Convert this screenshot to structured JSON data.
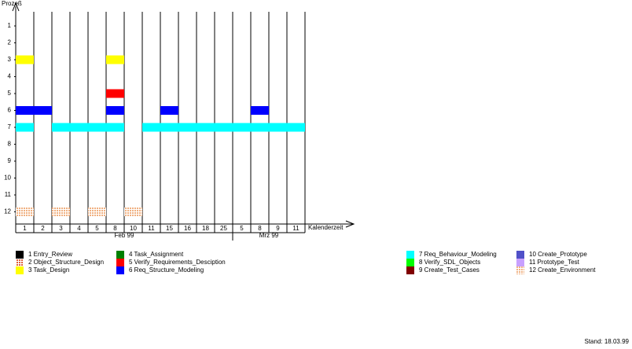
{
  "chart_data": {
    "type": "gantt",
    "y_label": "Prozeß",
    "x_label": "Kalenderzeit",
    "yticks": [
      1,
      2,
      3,
      4,
      5,
      6,
      7,
      8,
      9,
      10,
      11,
      12
    ],
    "categories": [
      "1",
      "2",
      "3",
      "4",
      "5",
      "8",
      "10",
      "11",
      "15",
      "16",
      "18",
      "25",
      "5",
      "8",
      "9",
      "11"
    ],
    "months": [
      {
        "label": "Feb 99",
        "from": 0,
        "to": 11
      },
      {
        "label": "Mrz 99",
        "from": 12,
        "to": 15
      }
    ],
    "series": [
      {
        "name": "1 Entry_Review",
        "color": "#000000",
        "row": 1,
        "spans": []
      },
      {
        "name": "2 Object_Structure_Design",
        "color": "#e0603a",
        "pattern": true,
        "row": 2,
        "spans": []
      },
      {
        "name": "3 Task_Design",
        "color": "#ffff00",
        "row": 3,
        "spans": [
          [
            0,
            0
          ],
          [
            5,
            5
          ]
        ]
      },
      {
        "name": "4 Task_Assignment",
        "color": "#008000",
        "row": 4,
        "spans": []
      },
      {
        "name": "5 Verify_Requirements_Desciption",
        "color": "#ff0000",
        "row": 5,
        "spans": [
          [
            5,
            5
          ]
        ]
      },
      {
        "name": "6 Req_Structure_Modeling",
        "color": "#0000ff",
        "row": 6,
        "spans": [
          [
            0,
            1
          ],
          [
            5,
            5
          ],
          [
            8,
            8
          ],
          [
            13,
            13
          ]
        ]
      },
      {
        "name": "7 Req_Behaviour_Modeling",
        "color": "#00ffff",
        "row": 7,
        "spans": [
          [
            0,
            0
          ],
          [
            2,
            5
          ],
          [
            7,
            15
          ]
        ]
      },
      {
        "name": "8 Verify_SDL_Objects",
        "color": "#00ff00",
        "row": 8,
        "spans": []
      },
      {
        "name": "9 Create_Test_Cases",
        "color": "#800000",
        "row": 9,
        "spans": []
      },
      {
        "name": "10 Create_Prototype",
        "color": "#5050c8",
        "row": 10,
        "spans": []
      },
      {
        "name": "11 Prototype_Test",
        "color": "#c8a0ff",
        "row": 11,
        "spans": []
      },
      {
        "name": "12 Create_Environment",
        "color": "#f0b080",
        "pattern": true,
        "row": 12,
        "spans": [
          [
            0,
            0
          ],
          [
            2,
            2
          ],
          [
            4,
            4
          ],
          [
            6,
            6
          ]
        ]
      }
    ],
    "footer": "Stand: 18.03.99"
  }
}
